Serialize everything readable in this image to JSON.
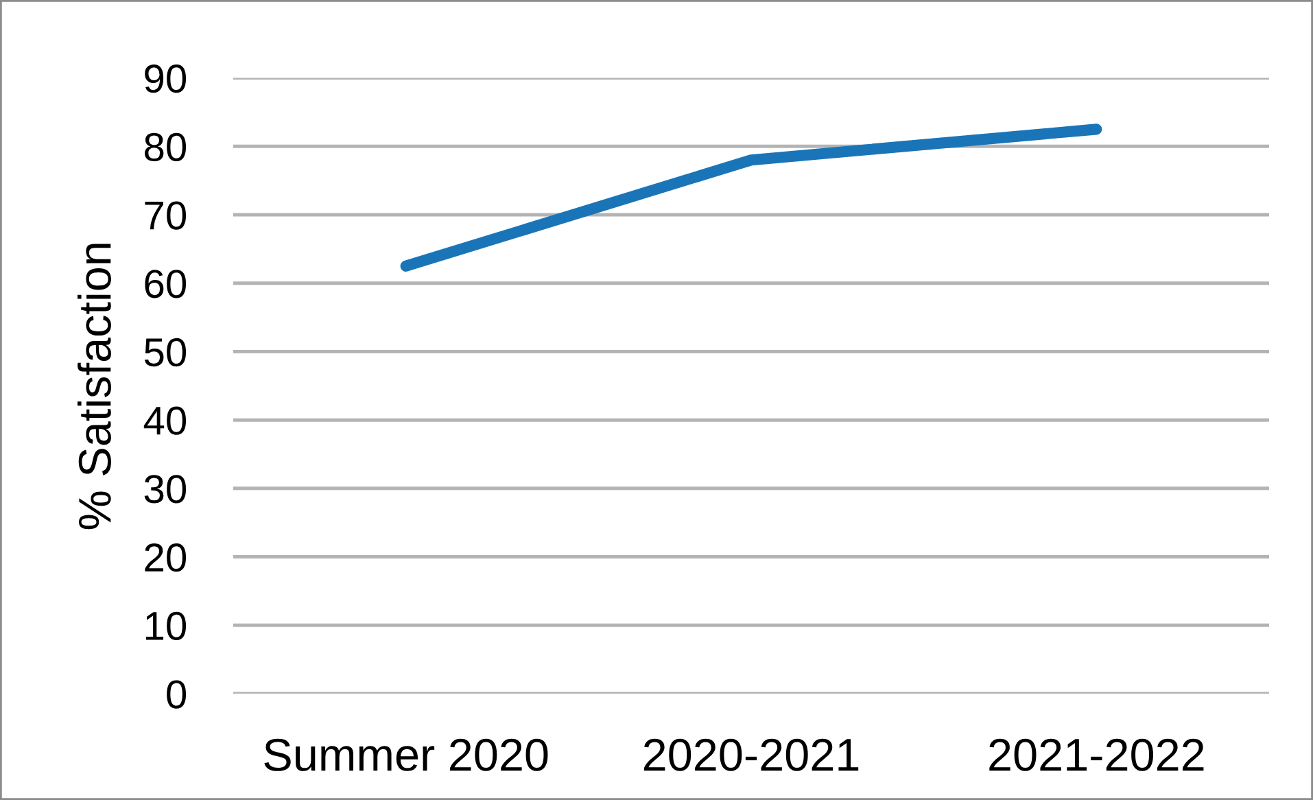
{
  "chart_data": {
    "type": "line",
    "ylabel": "% Satisfaction",
    "categories": [
      "Summer 2020",
      "2020-2021",
      "2021-2022"
    ],
    "series": [
      {
        "color": "#1a75b8",
        "values": [
          62.5,
          78,
          82.5
        ]
      }
    ],
    "ylim": [
      0,
      90
    ],
    "yticks": [
      0,
      10,
      20,
      30,
      40,
      50,
      60,
      70,
      80,
      90
    ],
    "grid": "y",
    "marker": "none",
    "line_style": "solid"
  }
}
